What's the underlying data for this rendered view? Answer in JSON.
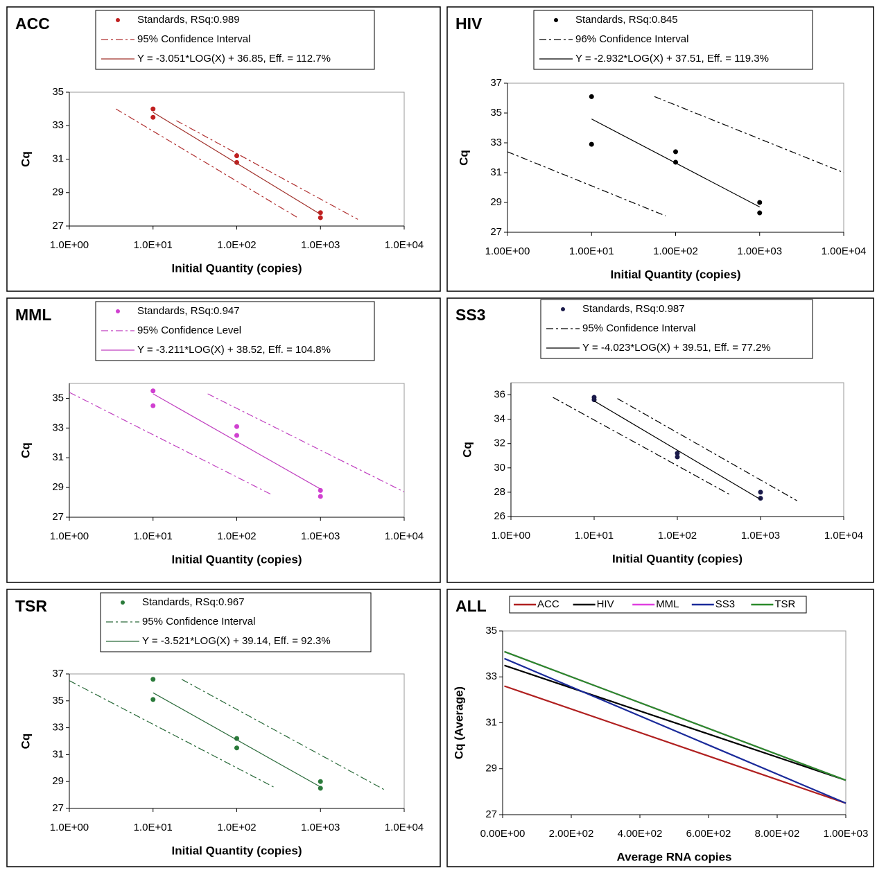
{
  "chart_data": [
    {
      "type": "scatter",
      "title": "ACC",
      "xlabel": "Initial Quantity (copies)",
      "ylabel": "Cq",
      "xscale": "log",
      "legend": "stacked",
      "xlim": [
        1,
        10000
      ],
      "xticks": [
        {
          "value": 1,
          "label": "1.0E+00"
        },
        {
          "value": 10,
          "label": "1.0E+01"
        },
        {
          "value": 100,
          "label": "1.0E+02"
        },
        {
          "value": 1000,
          "label": "1.0E+03"
        },
        {
          "value": 10000,
          "label": "1.0E+04"
        }
      ],
      "ylim": [
        27,
        35
      ],
      "yticks": [
        27,
        29,
        31,
        33,
        35
      ],
      "series": [
        {
          "name": "Standards, RSq:0.989",
          "color": "#c02020",
          "style": "marker",
          "x": [
            10,
            10,
            100,
            100,
            1000,
            1000
          ],
          "values": [
            34.0,
            33.5,
            31.2,
            30.8,
            27.8,
            27.5
          ]
        },
        {
          "name": "95% Confidence Interval",
          "color": "#b03030",
          "style": "dashdot",
          "x": [
            3.6,
            535,
            null,
            19,
            2800
          ],
          "values": [
            34.0,
            27.5,
            null,
            33.3,
            27.4
          ]
        },
        {
          "name": "Y = -3.051*LOG(X) + 36.85, Eff. = 112.7%",
          "color": "#a0302a",
          "style": "solid",
          "x": [
            10,
            1000
          ],
          "values": [
            33.8,
            27.7
          ]
        }
      ]
    },
    {
      "type": "scatter",
      "title": "HIV",
      "xlabel": "Initial Quantity (copies)",
      "ylabel": "Cq",
      "xscale": "log",
      "legend": "stacked",
      "xlim": [
        1,
        10000
      ],
      "xticks": [
        {
          "value": 1,
          "label": "1.00E+00"
        },
        {
          "value": 10,
          "label": "1.00E+01"
        },
        {
          "value": 100,
          "label": "1.00E+02"
        },
        {
          "value": 1000,
          "label": "1.00E+03"
        },
        {
          "value": 10000,
          "label": "1.00E+04"
        }
      ],
      "ylim": [
        27,
        37
      ],
      "yticks": [
        27,
        29,
        31,
        33,
        35,
        37
      ],
      "series": [
        {
          "name": "Standards, RSq:0.845",
          "color": "#000000",
          "style": "marker",
          "x": [
            10,
            10,
            100,
            100,
            1000,
            1000
          ],
          "values": [
            36.1,
            32.9,
            32.4,
            31.7,
            29.0,
            28.3
          ]
        },
        {
          "name": "96% Confidence Interval",
          "color": "#000000",
          "style": "dashdot",
          "x": [
            1,
            76,
            null,
            56,
            10000
          ],
          "values": [
            32.4,
            28.1,
            null,
            36.1,
            31.0
          ]
        },
        {
          "name": "Y = -2.932*LOG(X) + 37.51, Eff. = 119.3%",
          "color": "#000000",
          "style": "solid",
          "x": [
            10,
            1000
          ],
          "values": [
            34.6,
            28.7
          ]
        }
      ]
    },
    {
      "type": "scatter",
      "title": "MML",
      "xlabel": "Initial Quantity (copies)",
      "ylabel": "Cq",
      "xscale": "log",
      "legend": "stacked",
      "xlim": [
        1,
        10000
      ],
      "xticks": [
        {
          "value": 1,
          "label": "1.0E+00"
        },
        {
          "value": 10,
          "label": "1.0E+01"
        },
        {
          "value": 100,
          "label": "1.0E+02"
        },
        {
          "value": 1000,
          "label": "1.0E+03"
        },
        {
          "value": 10000,
          "label": "1.0E+04"
        }
      ],
      "ylim": [
        27,
        36
      ],
      "yticks": [
        27,
        29,
        31,
        33,
        35
      ],
      "series": [
        {
          "name": "Standards, RSq:0.947",
          "color": "#d040d0",
          "style": "marker",
          "x": [
            10,
            10,
            100,
            100,
            1000,
            1000
          ],
          "values": [
            35.5,
            34.5,
            33.1,
            32.5,
            28.8,
            28.4
          ]
        },
        {
          "name": "95% Confidence Level",
          "color": "#c040c0",
          "style": "dashdot",
          "x": [
            1,
            265,
            null,
            45,
            10000
          ],
          "values": [
            35.4,
            28.5,
            null,
            35.3,
            28.7
          ]
        },
        {
          "name": "Y = -3.211*LOG(X) + 38.52, Eff. = 104.8%",
          "color": "#c040c0",
          "style": "solid",
          "x": [
            10,
            1000
          ],
          "values": [
            35.3,
            28.9
          ]
        }
      ]
    },
    {
      "type": "scatter",
      "title": "SS3",
      "xlabel": "Initial Quantity (copies)",
      "ylabel": "Cq",
      "xscale": "log",
      "legend": "stacked",
      "xlim": [
        1,
        10000
      ],
      "xticks": [
        {
          "value": 1,
          "label": "1.0E+00"
        },
        {
          "value": 10,
          "label": "1.0E+01"
        },
        {
          "value": 100,
          "label": "1.0E+02"
        },
        {
          "value": 1000,
          "label": "1.0E+03"
        },
        {
          "value": 10000,
          "label": "1.0E+04"
        }
      ],
      "ylim": [
        26,
        37
      ],
      "yticks": [
        26,
        28,
        30,
        32,
        34,
        36
      ],
      "series": [
        {
          "name": "Standards, RSq:0.987",
          "color": "#1a1a4a",
          "style": "marker",
          "x": [
            10,
            10,
            100,
            100,
            1000,
            1000
          ],
          "values": [
            35.8,
            35.6,
            31.2,
            30.9,
            28.0,
            27.5
          ]
        },
        {
          "name": "95% Confidence Interval",
          "color": "#000000",
          "style": "dashdot",
          "x": [
            3.2,
            430,
            null,
            19,
            2750
          ],
          "values": [
            35.8,
            27.8,
            null,
            35.7,
            27.3
          ]
        },
        {
          "name": "Y = -4.023*LOG(X) + 39.51, Eff. = 77.2%",
          "color": "#000000",
          "style": "solid",
          "x": [
            10,
            1000
          ],
          "values": [
            35.5,
            27.4
          ]
        }
      ]
    },
    {
      "type": "scatter",
      "title": "TSR",
      "xlabel": "Initial Quantity (copies)",
      "ylabel": "Cq",
      "xscale": "log",
      "legend": "stacked",
      "xlim": [
        1,
        10000
      ],
      "xticks": [
        {
          "value": 1,
          "label": "1.0E+00"
        },
        {
          "value": 10,
          "label": "1.0E+01"
        },
        {
          "value": 100,
          "label": "1.0E+02"
        },
        {
          "value": 1000,
          "label": "1.0E+03"
        },
        {
          "value": 10000,
          "label": "1.0E+04"
        }
      ],
      "ylim": [
        27,
        37
      ],
      "yticks": [
        27,
        29,
        31,
        33,
        35,
        37
      ],
      "series": [
        {
          "name": "Standards, RSq:0.967",
          "color": "#2a7a3a",
          "style": "marker",
          "x": [
            10,
            10,
            100,
            100,
            1000,
            1000
          ],
          "values": [
            36.6,
            35.1,
            32.2,
            31.5,
            29.0,
            28.5
          ]
        },
        {
          "name": "95% Confidence Interval",
          "color": "#2a6a3a",
          "style": "dashdot",
          "x": [
            1,
            275,
            null,
            22,
            5750
          ],
          "values": [
            36.5,
            28.6,
            null,
            36.6,
            28.4
          ]
        },
        {
          "name": "Y = -3.521*LOG(X) + 39.14, Eff. = 92.3%",
          "color": "#2a6a3a",
          "style": "solid",
          "x": [
            10,
            1000
          ],
          "values": [
            35.6,
            28.6
          ]
        }
      ]
    },
    {
      "type": "line",
      "title": "ALL",
      "xlabel": "Average RNA copies",
      "ylabel": "Cq (Average)",
      "xscale": "linear",
      "legend": "row",
      "xlim": [
        0,
        1000
      ],
      "xticks": [
        {
          "value": 0,
          "label": "0.00E+00"
        },
        {
          "value": 200,
          "label": "2.00E+02"
        },
        {
          "value": 400,
          "label": "4.00E+02"
        },
        {
          "value": 600,
          "label": "6.00E+02"
        },
        {
          "value": 800,
          "label": "8.00E+02"
        },
        {
          "value": 1000,
          "label": "1.00E+03"
        }
      ],
      "ylim": [
        27,
        35
      ],
      "yticks": [
        27,
        29,
        31,
        33,
        35
      ],
      "series": [
        {
          "name": "ACC",
          "color": "#b02020",
          "style": "solid",
          "x": [
            5,
            1000
          ],
          "values": [
            32.6,
            27.5
          ]
        },
        {
          "name": "HIV",
          "color": "#000000",
          "style": "solid",
          "x": [
            5,
            1000
          ],
          "values": [
            33.5,
            28.5
          ]
        },
        {
          "name": "MML",
          "color": "#e040e0",
          "style": "solid",
          "x": [
            5,
            1000
          ],
          "values": [
            34.1,
            28.5
          ]
        },
        {
          "name": "SS3",
          "color": "#1a2a9a",
          "style": "solid",
          "x": [
            5,
            1000
          ],
          "values": [
            33.8,
            27.5
          ]
        },
        {
          "name": "TSR",
          "color": "#2a8a2a",
          "style": "solid",
          "x": [
            5,
            1000
          ],
          "values": [
            34.1,
            28.5
          ]
        }
      ]
    }
  ]
}
